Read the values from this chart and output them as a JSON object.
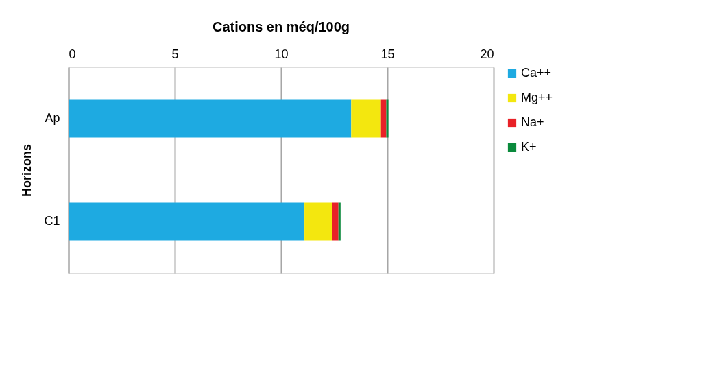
{
  "chart_data": {
    "type": "bar",
    "orientation": "horizontal",
    "stacked": true,
    "title": "Cations en méq/100g",
    "ylabel": "Horizons",
    "categories": [
      "Ap",
      "C1"
    ],
    "series": [
      {
        "name": "Ca++",
        "color": "#1eaae1",
        "values": [
          13.3,
          11.1
        ]
      },
      {
        "name": "Mg++",
        "color": "#f3e70f",
        "values": [
          1.4,
          1.3
        ]
      },
      {
        "name": "Na+",
        "color": "#e82127",
        "values": [
          0.25,
          0.3
        ]
      },
      {
        "name": "K+",
        "color": "#0a8a3c",
        "values": [
          0.1,
          0.1
        ]
      }
    ],
    "xlim": [
      0,
      20
    ],
    "xticks": [
      0,
      5,
      10,
      15,
      20
    ],
    "grid": "x",
    "legend": "right"
  }
}
